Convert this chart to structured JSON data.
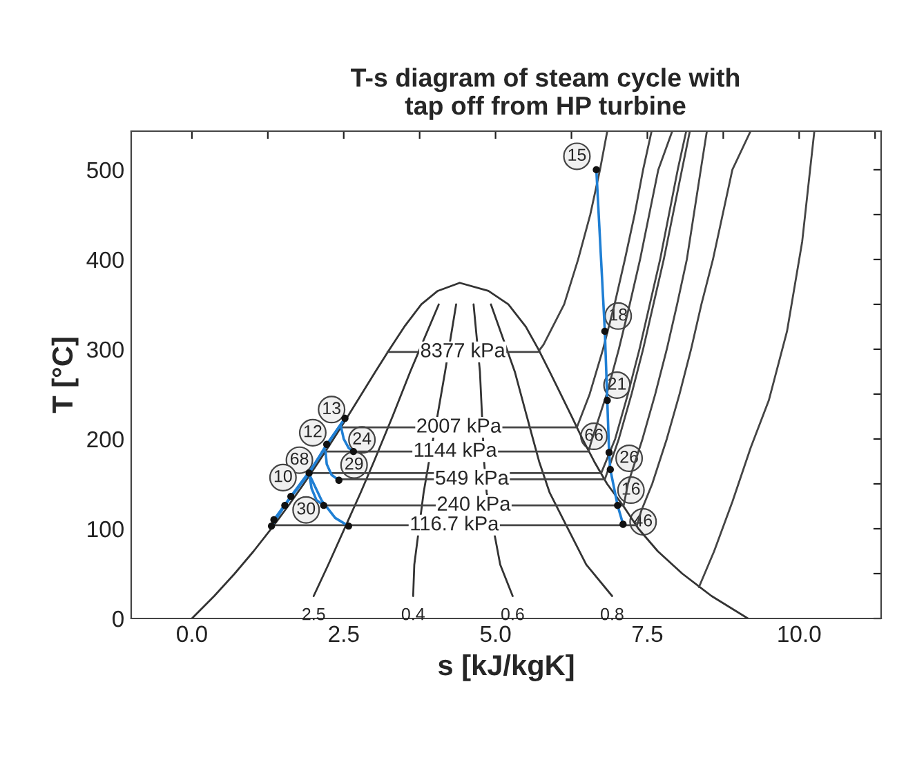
{
  "chart_data": {
    "type": "line",
    "title": "T-s diagram of steam cycle with\ntap off from HP turbine",
    "xlabel": "s [kJ/kgK]",
    "ylabel": "T [°C]",
    "xlim": [
      -1,
      11.35
    ],
    "ylim": [
      0,
      543
    ],
    "xticks": [
      {
        "value": 0,
        "label": "0.0"
      },
      {
        "value": 1.25,
        "label": null
      },
      {
        "value": 2.5,
        "label": "2.5"
      },
      {
        "value": 3.75,
        "label": null
      },
      {
        "value": 5,
        "label": "5.0"
      },
      {
        "value": 6.25,
        "label": null
      },
      {
        "value": 7.5,
        "label": "7.5"
      },
      {
        "value": 8.75,
        "label": null
      },
      {
        "value": 10,
        "label": "10.0"
      },
      {
        "value": 11.25,
        "label": null
      }
    ],
    "yticks": [
      0,
      {
        "value": 50,
        "label": null
      },
      100,
      {
        "value": 150,
        "label": null
      },
      200,
      {
        "value": 250,
        "label": null
      },
      300,
      {
        "value": 350,
        "label": null
      },
      400,
      {
        "value": 450,
        "label": null
      },
      500
    ],
    "grid": false,
    "series": [
      {
        "color": "#333333",
        "x": [
          0,
          0.367,
          0.704,
          1.016,
          1.307,
          1.581,
          1.842,
          2.091,
          2.331,
          2.565,
          2.793,
          3.021,
          3.255,
          3.497,
          3.778,
          4.048,
          4.41,
          4.882,
          5.211,
          5.499,
          5.705,
          5.891,
          6.073,
          6.254,
          6.431,
          6.624,
          6.837,
          7.108,
          7.354,
          7.671,
          8.075,
          8.558,
          9.156
        ],
        "values": [
          0,
          25,
          50,
          75,
          100,
          125,
          150,
          175,
          200,
          225,
          250,
          275,
          300,
          325,
          350,
          365,
          374,
          365,
          350,
          325,
          300,
          275,
          250,
          225,
          200,
          175,
          150,
          125,
          100,
          75,
          50,
          25,
          0
        ]
      },
      {
        "name": "2.5",
        "color": "#333333",
        "x": [
          2.005,
          2.246,
          2.777,
          2.998,
          3.303,
          3.595,
          4.065
        ],
        "values": [
          25,
          60,
          140,
          175,
          225,
          275,
          350
        ]
      },
      {
        "name": "0.4",
        "color": "#333333",
        "x": [
          3.643,
          3.662,
          3.815,
          3.904,
          4.041,
          4.169,
          4.351
        ],
        "values": [
          25,
          60,
          140,
          175,
          225,
          275,
          350
        ]
      },
      {
        "name": "0.6",
        "color": "#333333",
        "x": [
          5.282,
          5.077,
          4.854,
          4.811,
          4.778,
          4.743,
          4.638
        ],
        "values": [
          25,
          60,
          140,
          175,
          225,
          275,
          350
        ]
      },
      {
        "name": "0.8",
        "color": "#333333",
        "x": [
          6.92,
          6.493,
          5.892,
          5.717,
          5.516,
          5.317,
          4.924
        ],
        "values": [
          25,
          60,
          140,
          175,
          225,
          275,
          350
        ]
      },
      {
        "name": "8377 kPa",
        "color": "#444444",
        "x": [
          3.22,
          5.7,
          5.79,
          6.13,
          6.36,
          6.56,
          6.72,
          6.84
        ],
        "values": [
          297,
          297,
          305,
          350,
          400,
          450,
          500,
          543
        ]
      },
      {
        "name": "2007 kPa",
        "color": "#444444",
        "x": [
          2.45,
          6.34,
          6.55,
          6.77,
          6.96,
          7.13,
          7.29,
          7.43,
          7.57
        ],
        "values": [
          213,
          213,
          250,
          300,
          350,
          400,
          450,
          500,
          543
        ]
      },
      {
        "name": "1144 kPa",
        "color": "#444444",
        "x": [
          2.14,
          6.53,
          6.59,
          6.83,
          7.03,
          7.21,
          7.38,
          7.68,
          7.91
        ],
        "values": [
          186,
          186,
          200,
          250,
          300,
          350,
          400,
          500,
          543
        ]
      },
      {
        "color": "#444444",
        "x": [
          1.93,
          6.74,
          6.97,
          7.18,
          7.37,
          7.54,
          7.71,
          8.0,
          8.14
        ],
        "values": [
          162,
          162,
          200,
          250,
          300,
          350,
          400,
          500,
          543
        ]
      },
      {
        "name": "549 kPa",
        "color": "#444444",
        "x": [
          2.42,
          6.8,
          7.03,
          7.24,
          7.43,
          7.6,
          7.77,
          8.07,
          8.2
        ],
        "values": [
          155,
          155,
          200,
          250,
          300,
          350,
          400,
          500,
          543
        ]
      },
      {
        "name": "240 kPa",
        "color": "#444444",
        "x": [
          2.17,
          7.11,
          7.18,
          7.42,
          7.63,
          7.82,
          7.99,
          8.15,
          8.38,
          8.48
        ],
        "values": [
          126,
          126,
          150,
          200,
          250,
          300,
          350,
          400,
          500,
          543
        ]
      },
      {
        "name": "116.7 kPa",
        "color": "#444444",
        "x": [
          1.31,
          7.33,
          7.4,
          7.58,
          7.82,
          8.03,
          8.22,
          8.39,
          8.58,
          8.9,
          9.2
        ],
        "values": [
          104,
          104,
          120,
          150,
          200,
          250,
          300,
          350,
          400,
          500,
          543
        ]
      },
      {
        "color": "#444444",
        "x": [
          8.35,
          8.6,
          8.9,
          9.2,
          9.5,
          9.8,
          10.05,
          10.25
        ],
        "values": [
          35,
          75,
          130,
          190,
          243,
          320,
          420,
          543
        ]
      },
      {
        "color": "#1f7fd4",
        "x": [
          6.66,
          6.8,
          6.84,
          6.87,
          6.89,
          7.01,
          7.1
        ],
        "values": [
          500,
          320,
          243,
          185,
          166,
          126,
          105
        ]
      },
      {
        "color": "#1f7fd4",
        "x": [
          1.31,
          1.53,
          1.93,
          2.22,
          2.52
        ],
        "values": [
          103,
          126,
          162,
          194,
          223
        ]
      },
      {
        "color": "#1f7fd4",
        "x": [
          1.35,
          1.63,
          1.98,
          2.28,
          2.52
        ],
        "values": [
          110,
          136,
          168,
          199,
          223
        ]
      },
      {
        "color": "#1f7fd4",
        "x": [
          2.45,
          2.5,
          2.58,
          2.66
        ],
        "values": [
          215,
          200,
          190,
          186
        ]
      },
      {
        "color": "#1f7fd4",
        "x": [
          2.2,
          2.22,
          2.3,
          2.42
        ],
        "values": [
          186,
          172,
          160,
          154
        ]
      },
      {
        "color": "#1f7fd4",
        "x": [
          1.93,
          1.97,
          2.05,
          2.17
        ],
        "values": [
          162,
          145,
          132,
          126
        ]
      },
      {
        "color": "#1f7fd4",
        "x": [
          1.95,
          2.14,
          2.36,
          2.58
        ],
        "values": [
          158,
          131,
          112,
          103
        ]
      },
      {
        "type": "scatter",
        "marker": "circle",
        "color": "#111111",
        "x": [
          6.66,
          6.8,
          6.84,
          6.87,
          6.89,
          7.01,
          7.1,
          2.52,
          2.22,
          1.93,
          1.63,
          1.53,
          1.35,
          1.31,
          2.66,
          2.42,
          2.17,
          2.58
        ],
        "values": [
          500,
          320,
          243,
          185,
          166,
          126,
          105,
          223,
          194,
          162,
          136,
          126,
          110,
          103,
          186,
          154,
          126,
          103
        ]
      }
    ],
    "annotations": [
      {
        "text": "15",
        "x": 6.34,
        "y": 515
      },
      {
        "text": "18",
        "x": 7.02,
        "y": 337
      },
      {
        "text": "21",
        "x": 7.0,
        "y": 260
      },
      {
        "text": "66",
        "x": 6.62,
        "y": 203
      },
      {
        "text": "26",
        "x": 7.2,
        "y": 178.5
      },
      {
        "text": "16",
        "x": 7.23,
        "y": 143
      },
      {
        "text": "46",
        "x": 7.43,
        "y": 107.7
      },
      {
        "text": "13",
        "x": 2.3,
        "y": 232.8
      },
      {
        "text": "12",
        "x": 1.99,
        "y": 207
      },
      {
        "text": "24",
        "x": 2.8,
        "y": 199
      },
      {
        "text": "68",
        "x": 1.77,
        "y": 176.4
      },
      {
        "text": "29",
        "x": 2.67,
        "y": 171
      },
      {
        "text": "10",
        "x": 1.5,
        "y": 157
      },
      {
        "text": "30",
        "x": 1.88,
        "y": 121
      }
    ]
  }
}
